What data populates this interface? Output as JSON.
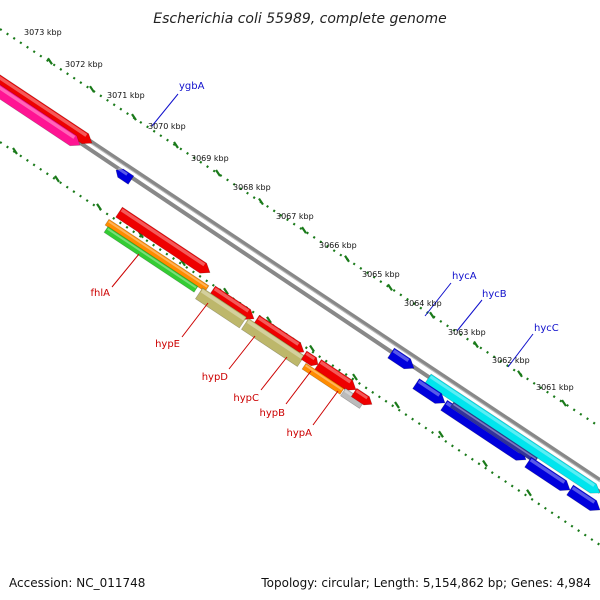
{
  "title": "Escherichia coli 55989, complete genome",
  "accession": "Accession: NC_011748",
  "summary": "Topology: circular; Length: 5,154,862 bp; Genes: 4,984",
  "colors": {
    "backbone": "#888888",
    "tick": "#1a7a1a",
    "red": "#ee0000",
    "pink": "#ff1493",
    "olive": "#bdb76b",
    "orange": "#ff8c00",
    "green": "#33cc33",
    "grey": "#bbbbbb",
    "blue": "#0000dd",
    "cyan": "#00e5ee",
    "navy": "#333399",
    "red_label": "#cc0000",
    "blue_label": "#1010cc"
  },
  "scale_ticks": [
    "3073 kbp",
    "3072 kbp",
    "3071 kbp",
    "3070 kbp",
    "3069 kbp",
    "3068 kbp",
    "3067 kbp",
    "3066 kbp",
    "3065 kbp",
    "3064 kbp",
    "3063 kbp",
    "3062 kbp",
    "3061 kbp"
  ],
  "gene_labels": {
    "ygbA": "ygbA",
    "fhlA": "fhlA",
    "hypE": "hypE",
    "hypD": "hypD",
    "hypC": "hypC",
    "hypB": "hypB",
    "hypA": "hypA",
    "hycA": "hycA",
    "hycB": "hycB",
    "hycC": "hycC"
  }
}
